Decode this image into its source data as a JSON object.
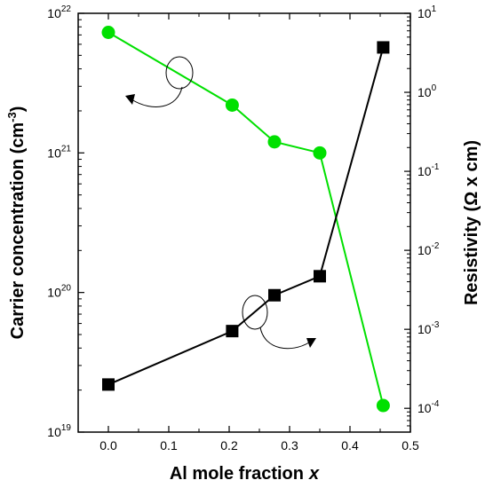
{
  "chart_data": {
    "type": "line",
    "xlabel": "Al mole fraction",
    "xlabel_var": "x",
    "ylabel_left": "Carrier concentration (cm",
    "ylabel_left_sup": "-3",
    "ylabel_left_tail": ")",
    "ylabel_right": "Resistivity (Ω x cm)",
    "xlim": [
      -0.05,
      0.5
    ],
    "ylim_left": [
      1e+19,
      1e+22
    ],
    "ylim_right": [
      5e-05,
      10
    ],
    "x_scale": "linear",
    "y_scale_left": "log",
    "y_scale_right": "log",
    "x_ticks": [
      "0.0",
      "0.1",
      "0.2",
      "0.3",
      "0.4",
      "0.5"
    ],
    "y_ticks_left": [
      {
        "base": "10",
        "exp": "19"
      },
      {
        "base": "10",
        "exp": "20"
      },
      {
        "base": "10",
        "exp": "21"
      },
      {
        "base": "10",
        "exp": "22"
      }
    ],
    "y_ticks_right": [
      {
        "base": "10",
        "exp": "-4"
      },
      {
        "base": "10",
        "exp": "-3"
      },
      {
        "base": "10",
        "exp": "-2"
      },
      {
        "base": "10",
        "exp": "-1"
      },
      {
        "base": "10",
        "exp": "0"
      },
      {
        "base": "10",
        "exp": "1"
      }
    ],
    "grid": false,
    "series": [
      {
        "axis": "left",
        "marker": "circle",
        "color": "#00e000",
        "x": [
          0.0,
          0.205,
          0.275,
          0.35,
          0.455
        ],
        "y": [
          7.3e+21,
          2.2e+21,
          1.2e+21,
          1e+21,
          1.55e+19
        ]
      },
      {
        "axis": "right",
        "marker": "square",
        "color": "#000000",
        "x": [
          0.0,
          0.205,
          0.275,
          0.35,
          0.455
        ],
        "y": [
          0.0002,
          0.00095,
          0.0027,
          0.0047,
          3.7
        ]
      }
    ]
  }
}
